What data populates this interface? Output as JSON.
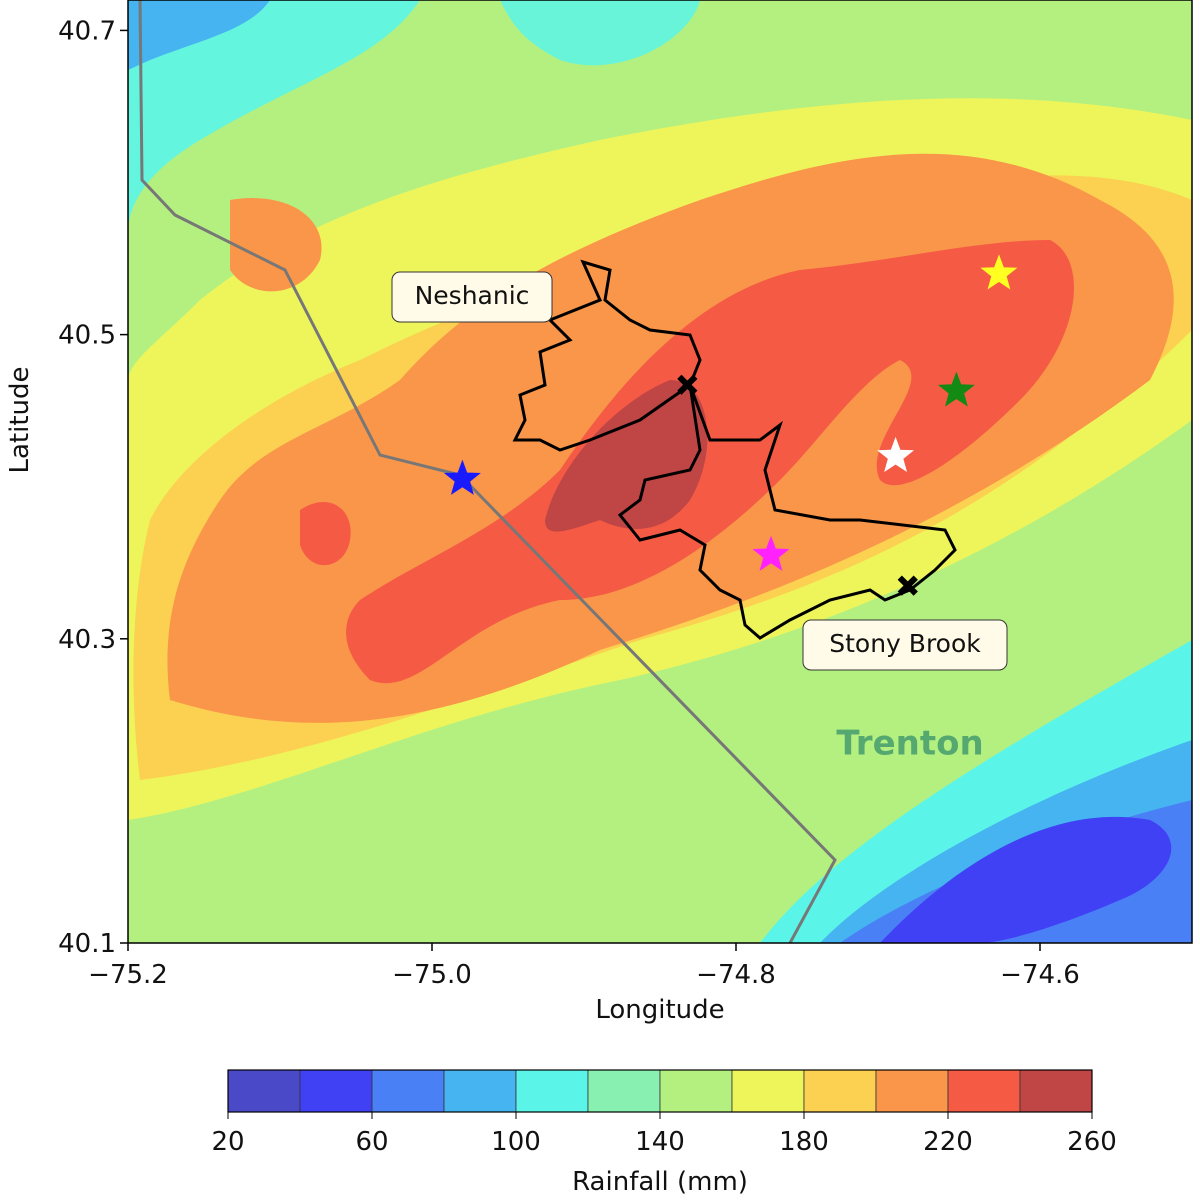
{
  "chart_data": {
    "type": "map",
    "xlabel": "Longitude",
    "ylabel": "Latitude",
    "xlim": [
      -75.2,
      -74.5
    ],
    "ylim": [
      40.1,
      40.72
    ],
    "xticks": [
      {
        "value": -75.2,
        "label": "−75.2"
      },
      {
        "value": -75.0,
        "label": "−75.0"
      },
      {
        "value": -74.8,
        "label": "−74.8"
      },
      {
        "value": -74.6,
        "label": "−74.6"
      }
    ],
    "yticks": [
      40.1,
      40.3,
      40.5,
      40.7
    ],
    "labels": [
      "Neshanic",
      "Stony Brook",
      "Trenton"
    ],
    "points": [
      {
        "marker": "star",
        "color": "#1a1aff",
        "lon": -74.98,
        "lat": 40.405
      },
      {
        "marker": "star",
        "color": "#ff22ff",
        "lon": -74.777,
        "lat": 40.355
      },
      {
        "marker": "star",
        "color": "#ffffff",
        "lon": -74.695,
        "lat": 40.42
      },
      {
        "marker": "star",
        "color": "#138a13",
        "lon": -74.655,
        "lat": 40.463
      },
      {
        "marker": "star",
        "color": "#ffff22",
        "lon": -74.627,
        "lat": 40.54
      },
      {
        "marker": "x",
        "color": "#000000",
        "lon": -74.832,
        "lat": 40.467
      },
      {
        "marker": "x",
        "color": "#000000",
        "lon": -74.687,
        "lat": 40.335
      }
    ],
    "colorbar": {
      "label": "Rainfall (mm)",
      "boundaries": [
        20,
        40,
        60,
        80,
        100,
        120,
        140,
        160,
        180,
        200,
        220,
        240,
        260
      ],
      "colors": [
        "#4a4ac8",
        "#4040f5",
        "#4a80f5",
        "#45b4f0",
        "#5af5e8",
        "#88f0b0",
        "#b4f080",
        "#eef55a",
        "#fcd050",
        "#f9964a",
        "#f55a45",
        "#c04545"
      ],
      "ticks": [
        20,
        60,
        100,
        140,
        180,
        220,
        260
      ]
    }
  }
}
